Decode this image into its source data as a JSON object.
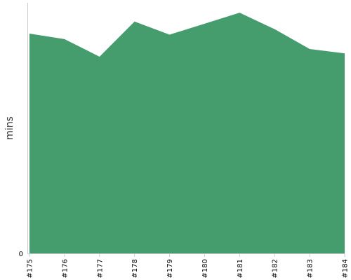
{
  "chart_data": {
    "type": "area",
    "categories": [
      "#175",
      "#176",
      "#177",
      "#178",
      "#179",
      "#180",
      "#181",
      "#182",
      "#183",
      "#184"
    ],
    "values": [
      100,
      97.5,
      89.5,
      105.5,
      99.5,
      104.5,
      109.5,
      102,
      93,
      91
    ],
    "title": "",
    "xlabel": "",
    "ylabel": "mins",
    "ylim": [
      0,
      114
    ],
    "yticks": [
      "0"
    ],
    "grid": false,
    "legend": "none",
    "colors": {
      "fill": "#459c6d",
      "axis": "#cccccc"
    }
  }
}
